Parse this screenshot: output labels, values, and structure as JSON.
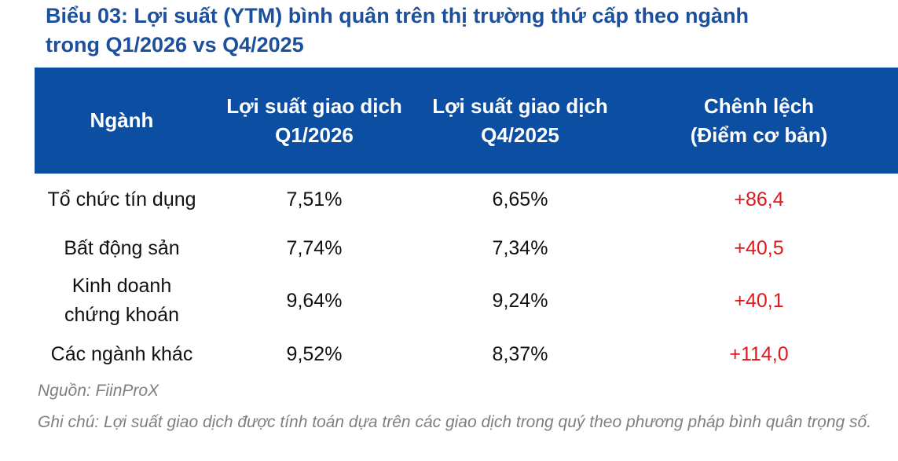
{
  "header": {
    "title_lines": [
      "Biểu 03: Lợi suất (YTM) bình quân trên thị trường thứ cấp theo ngành",
      "trong Q1/2026 vs Q4/2025"
    ]
  },
  "table": {
    "columns": [
      [
        "Ngành"
      ],
      [
        "Lợi suất giao dịch",
        "Q1/2026"
      ],
      [
        "Lợi suất giao dịch",
        "Q4/2025"
      ],
      [
        "Chênh lệch",
        "(Điểm cơ bản)"
      ]
    ],
    "rows": [
      [
        [
          "Tổ chức tín dụng"
        ],
        "7,51%",
        "6,65%",
        "+86,4"
      ],
      [
        [
          "Bất động sản"
        ],
        "7,74%",
        "7,34%",
        "+40,5"
      ],
      [
        [
          "Kinh doanh",
          "chứng khoán"
        ],
        "9,64%",
        "9,24%",
        "+40,1"
      ],
      [
        [
          "Các ngành khác"
        ],
        "9,52%",
        "8,37%",
        "+114,0"
      ]
    ]
  },
  "footer": {
    "source": "Nguồn: FiinProX",
    "note": "Ghi chú: Lợi suất giao dịch được tính toán dựa trên các giao dịch trong quý theo phương pháp bình quân trọng số."
  }
}
